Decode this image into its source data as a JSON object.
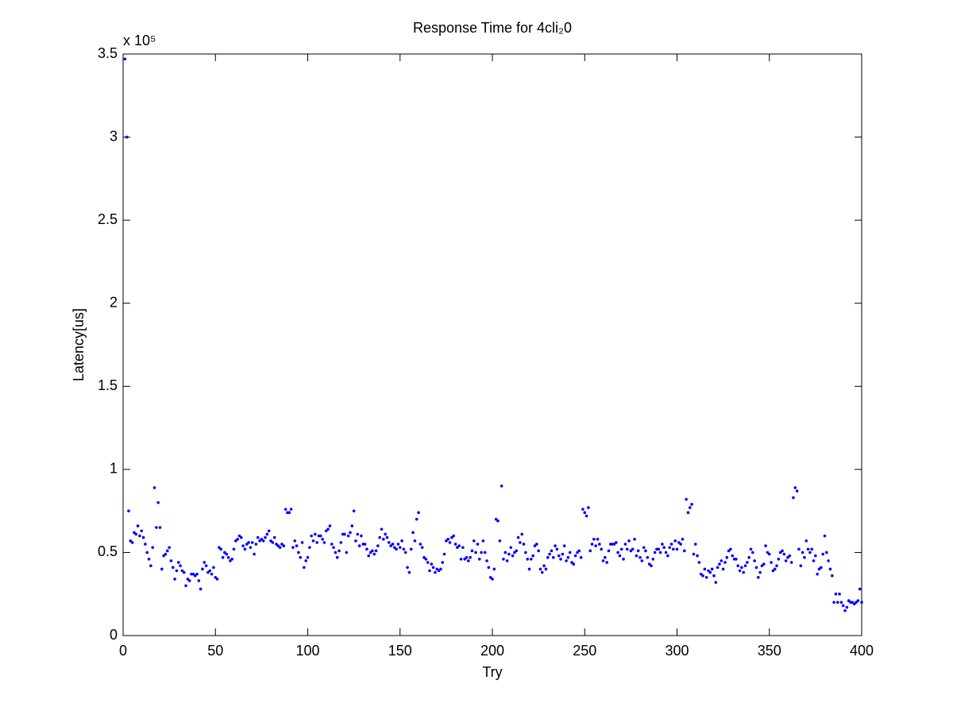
{
  "chart_data": {
    "type": "scatter",
    "title": "Response Time for 4cli₂0",
    "xlabel": "Try",
    "ylabel": "Latency[us]",
    "y_multiplier": "x 10⁵",
    "color": "#0000ff",
    "xlim": [
      0,
      400
    ],
    "ylim": [
      0,
      3.5
    ],
    "xticks": [
      0,
      50,
      100,
      150,
      200,
      250,
      300,
      350,
      400
    ],
    "yticks": [
      0,
      0.5,
      1,
      1.5,
      2,
      2.5,
      3,
      3.5
    ],
    "grid": false,
    "x": [
      1,
      2,
      3,
      4,
      5,
      6,
      7,
      8,
      9,
      10,
      11,
      12,
      13,
      14,
      15,
      16,
      17,
      18,
      19,
      20,
      21,
      22,
      23,
      24,
      25,
      26,
      27,
      28,
      29,
      30,
      31,
      32,
      33,
      34,
      35,
      36,
      37,
      38,
      39,
      40,
      41,
      42,
      43,
      44,
      45,
      46,
      47,
      48,
      49,
      50,
      51,
      52,
      53,
      54,
      55,
      56,
      57,
      58,
      59,
      60,
      61,
      62,
      63,
      64,
      65,
      66,
      67,
      68,
      69,
      70,
      71,
      72,
      73,
      74,
      75,
      76,
      77,
      78,
      79,
      80,
      81,
      82,
      83,
      84,
      85,
      86,
      87,
      88,
      89,
      90,
      91,
      92,
      93,
      94,
      95,
      96,
      97,
      98,
      99,
      100,
      101,
      102,
      103,
      104,
      105,
      106,
      107,
      108,
      109,
      110,
      111,
      112,
      113,
      114,
      115,
      116,
      117,
      118,
      119,
      120,
      121,
      122,
      123,
      124,
      125,
      126,
      127,
      128,
      129,
      130,
      131,
      132,
      133,
      134,
      135,
      136,
      137,
      138,
      139,
      140,
      141,
      142,
      143,
      144,
      145,
      146,
      147,
      148,
      149,
      150,
      151,
      152,
      153,
      154,
      155,
      156,
      157,
      158,
      159,
      160,
      161,
      162,
      163,
      164,
      165,
      166,
      167,
      168,
      169,
      170,
      171,
      172,
      173,
      174,
      175,
      176,
      177,
      178,
      179,
      180,
      181,
      182,
      183,
      184,
      185,
      186,
      187,
      188,
      189,
      190,
      191,
      192,
      193,
      194,
      195,
      196,
      197,
      198,
      199,
      200,
      201,
      202,
      203,
      204,
      205,
      206,
      207,
      208,
      209,
      210,
      211,
      212,
      213,
      214,
      215,
      216,
      217,
      218,
      219,
      220,
      221,
      222,
      223,
      224,
      225,
      226,
      227,
      228,
      229,
      230,
      231,
      232,
      233,
      234,
      235,
      236,
      237,
      238,
      239,
      240,
      241,
      242,
      243,
      244,
      245,
      246,
      247,
      248,
      249,
      250,
      251,
      252,
      253,
      254,
      255,
      256,
      257,
      258,
      259,
      260,
      261,
      262,
      263,
      264,
      265,
      266,
      267,
      268,
      269,
      270,
      271,
      272,
      273,
      274,
      275,
      276,
      277,
      278,
      279,
      280,
      281,
      282,
      283,
      284,
      285,
      286,
      287,
      288,
      289,
      290,
      291,
      292,
      293,
      294,
      295,
      296,
      297,
      298,
      299,
      300,
      301,
      302,
      303,
      304,
      305,
      306,
      307,
      308,
      309,
      310,
      311,
      312,
      313,
      314,
      315,
      316,
      317,
      318,
      319,
      320,
      321,
      322,
      323,
      324,
      325,
      326,
      327,
      328,
      329,
      330,
      331,
      332,
      333,
      334,
      335,
      336,
      337,
      338,
      339,
      340,
      341,
      342,
      343,
      344,
      345,
      346,
      347,
      348,
      349,
      350,
      351,
      352,
      353,
      354,
      355,
      356,
      357,
      358,
      359,
      360,
      361,
      362,
      363,
      364,
      365,
      366,
      367,
      368,
      369,
      370,
      371,
      372,
      373,
      374,
      375,
      376,
      377,
      378,
      379,
      380,
      381,
      382,
      383,
      384,
      385,
      386,
      387,
      388,
      389,
      390,
      391,
      392,
      393,
      394,
      395,
      396,
      397,
      398,
      399,
      400
    ],
    "values": [
      3.47,
      3.0,
      0.75,
      0.57,
      0.56,
      0.62,
      0.61,
      0.66,
      0.6,
      0.63,
      0.59,
      0.55,
      0.5,
      0.46,
      0.42,
      0.53,
      0.89,
      0.65,
      0.8,
      0.65,
      0.4,
      0.48,
      0.49,
      0.51,
      0.53,
      0.45,
      0.41,
      0.34,
      0.39,
      0.44,
      0.42,
      0.39,
      0.38,
      0.3,
      0.34,
      0.33,
      0.37,
      0.37,
      0.36,
      0.37,
      0.33,
      0.28,
      0.4,
      0.44,
      0.42,
      0.38,
      0.39,
      0.37,
      0.41,
      0.35,
      0.34,
      0.53,
      0.52,
      0.47,
      0.5,
      0.49,
      0.47,
      0.45,
      0.46,
      0.52,
      0.57,
      0.58,
      0.6,
      0.59,
      0.54,
      0.52,
      0.55,
      0.56,
      0.53,
      0.56,
      0.49,
      0.55,
      0.59,
      0.57,
      0.58,
      0.57,
      0.59,
      0.61,
      0.63,
      0.57,
      0.56,
      0.59,
      0.55,
      0.54,
      0.53,
      0.55,
      0.54,
      0.76,
      0.74,
      0.74,
      0.76,
      0.53,
      0.57,
      0.54,
      0.5,
      0.47,
      0.56,
      0.41,
      0.45,
      0.47,
      0.53,
      0.6,
      0.57,
      0.61,
      0.56,
      0.6,
      0.6,
      0.58,
      0.56,
      0.63,
      0.64,
      0.66,
      0.55,
      0.53,
      0.5,
      0.47,
      0.51,
      0.56,
      0.61,
      0.61,
      0.5,
      0.6,
      0.62,
      0.66,
      0.75,
      0.57,
      0.61,
      0.54,
      0.6,
      0.55,
      0.55,
      0.52,
      0.48,
      0.5,
      0.51,
      0.49,
      0.51,
      0.54,
      0.59,
      0.64,
      0.58,
      0.61,
      0.59,
      0.56,
      0.54,
      0.55,
      0.53,
      0.52,
      0.55,
      0.53,
      0.57,
      0.52,
      0.5,
      0.41,
      0.38,
      0.52,
      0.62,
      0.57,
      0.7,
      0.74,
      0.55,
      0.53,
      0.47,
      0.46,
      0.44,
      0.39,
      0.43,
      0.41,
      0.38,
      0.4,
      0.39,
      0.4,
      0.44,
      0.49,
      0.57,
      0.58,
      0.56,
      0.59,
      0.6,
      0.55,
      0.53,
      0.54,
      0.46,
      0.53,
      0.46,
      0.47,
      0.45,
      0.47,
      0.51,
      0.57,
      0.5,
      0.55,
      0.46,
      0.5,
      0.57,
      0.5,
      0.45,
      0.41,
      0.35,
      0.34,
      0.4,
      0.7,
      0.69,
      0.57,
      0.9,
      0.46,
      0.5,
      0.45,
      0.49,
      0.53,
      0.48,
      0.5,
      0.51,
      0.59,
      0.56,
      0.61,
      0.55,
      0.5,
      0.46,
      0.4,
      0.46,
      0.48,
      0.54,
      0.55,
      0.51,
      0.4,
      0.38,
      0.42,
      0.4,
      0.47,
      0.49,
      0.51,
      0.47,
      0.54,
      0.52,
      0.48,
      0.46,
      0.49,
      0.54,
      0.45,
      0.47,
      0.5,
      0.44,
      0.43,
      0.48,
      0.5,
      0.51,
      0.47,
      0.76,
      0.74,
      0.72,
      0.77,
      0.51,
      0.55,
      0.58,
      0.54,
      0.58,
      0.55,
      0.52,
      0.45,
      0.47,
      0.44,
      0.51,
      0.55,
      0.55,
      0.55,
      0.56,
      0.5,
      0.48,
      0.52,
      0.46,
      0.55,
      0.52,
      0.57,
      0.51,
      0.52,
      0.58,
      0.48,
      0.51,
      0.47,
      0.45,
      0.53,
      0.51,
      0.47,
      0.43,
      0.42,
      0.46,
      0.5,
      0.52,
      0.52,
      0.5,
      0.55,
      0.53,
      0.5,
      0.48,
      0.53,
      0.55,
      0.52,
      0.57,
      0.52,
      0.56,
      0.55,
      0.58,
      0.51,
      0.82,
      0.74,
      0.77,
      0.79,
      0.49,
      0.55,
      0.48,
      0.44,
      0.37,
      0.36,
      0.4,
      0.35,
      0.39,
      0.38,
      0.4,
      0.36,
      0.32,
      0.41,
      0.43,
      0.45,
      0.4,
      0.44,
      0.47,
      0.51,
      0.52,
      0.48,
      0.46,
      0.46,
      0.42,
      0.39,
      0.41,
      0.38,
      0.42,
      0.44,
      0.47,
      0.52,
      0.5,
      0.45,
      0.41,
      0.35,
      0.38,
      0.42,
      0.43,
      0.54,
      0.5,
      0.49,
      0.44,
      0.39,
      0.4,
      0.42,
      0.46,
      0.5,
      0.51,
      0.49,
      0.45,
      0.47,
      0.48,
      0.44,
      0.83,
      0.89,
      0.87,
      0.52,
      0.42,
      0.5,
      0.47,
      0.57,
      0.52,
      0.5,
      0.52,
      0.45,
      0.48,
      0.37,
      0.4,
      0.41,
      0.49,
      0.6,
      0.5,
      0.45,
      0.4,
      0.36,
      0.2,
      0.25,
      0.2,
      0.25,
      0.2,
      0.18,
      0.15,
      0.17,
      0.21,
      0.2,
      0.2,
      0.19,
      0.2,
      0.21,
      0.28,
      0.2
    ]
  }
}
